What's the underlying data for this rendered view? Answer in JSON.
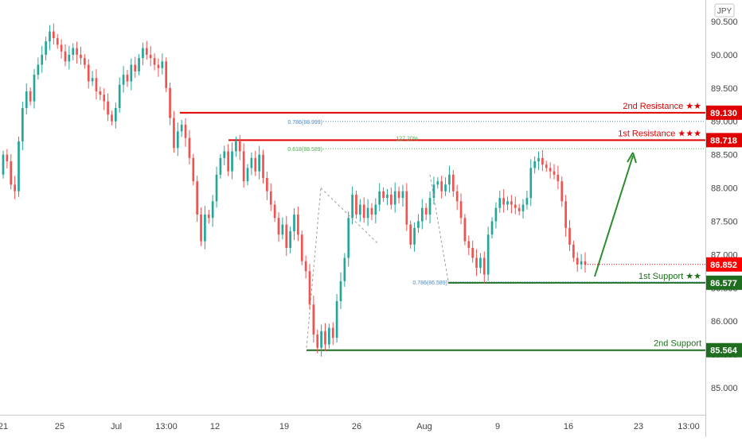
{
  "chart_data": {
    "type": "candlestick",
    "currency_label": "JPY",
    "colors": {
      "up": "#26a69a",
      "down": "#ef5350",
      "resistance": "#e00000",
      "support": "#1f6e1f",
      "fib_blue": "#4a8cc9",
      "fib_green": "#4caf50",
      "arrow": "#2e8b2e",
      "current_price": "#ff0000"
    },
    "y_axis": {
      "min": 84.5,
      "max": 90.8,
      "ticks": [
        "85.000",
        "85.500",
        "86.000",
        "86.500",
        "87.000",
        "87.500",
        "88.000",
        "88.500",
        "89.000",
        "89.500",
        "90.000",
        "90.500"
      ]
    },
    "x_axis": {
      "ticks": [
        "21",
        "25",
        "Jul",
        "13:00",
        "12",
        "19",
        "26",
        "Aug",
        "9",
        "16",
        "23",
        "13:00"
      ]
    },
    "levels": [
      {
        "label": "2nd Resistance ★★",
        "price": 89.13,
        "price_text": "89.130",
        "kind": "resistance"
      },
      {
        "label": "1st Resistance ★★★",
        "price": 88.718,
        "price_text": "88.718",
        "kind": "resistance"
      },
      {
        "label": "1st Support ★★",
        "price": 86.577,
        "price_text": "86.577",
        "kind": "support"
      },
      {
        "label": "2nd Support",
        "price": 85.564,
        "price_text": "85.564",
        "kind": "support"
      }
    ],
    "fib_labels": [
      {
        "text": "0.786(88.999)",
        "price": 88.999,
        "color": "blue"
      },
      {
        "text": "127.20%",
        "price": 88.75,
        "color": "green"
      },
      {
        "text": "0.618(88.589)",
        "price": 88.589,
        "color": "green"
      },
      {
        "text": "0.786(86.589)",
        "price": 86.589,
        "color": "blue"
      }
    ],
    "current_price": {
      "price": 86.852,
      "text": "86.852"
    },
    "series": [
      {
        "o": 88.2,
        "c": 88.5
      },
      {
        "o": 88.5,
        "c": 88.4
      },
      {
        "o": 88.4,
        "c": 88.05
      },
      {
        "o": 88.05,
        "c": 87.95
      },
      {
        "o": 87.95,
        "c": 88.7
      },
      {
        "o": 88.7,
        "c": 89.2
      },
      {
        "o": 89.2,
        "c": 89.45
      },
      {
        "o": 89.45,
        "c": 89.3
      },
      {
        "o": 89.3,
        "c": 89.7
      },
      {
        "o": 89.7,
        "c": 89.85
      },
      {
        "o": 89.85,
        "c": 90.0
      },
      {
        "o": 90.0,
        "c": 90.2
      },
      {
        "o": 90.2,
        "c": 90.35
      },
      {
        "o": 90.35,
        "c": 90.25
      },
      {
        "o": 90.25,
        "c": 90.15
      },
      {
        "o": 90.15,
        "c": 90.05
      },
      {
        "o": 90.05,
        "c": 89.9
      },
      {
        "o": 89.9,
        "c": 90.0
      },
      {
        "o": 90.0,
        "c": 90.1
      },
      {
        "o": 90.1,
        "c": 90.0
      },
      {
        "o": 90.0,
        "c": 89.95
      },
      {
        "o": 89.95,
        "c": 89.85
      },
      {
        "o": 89.85,
        "c": 89.6
      },
      {
        "o": 89.6,
        "c": 89.65
      },
      {
        "o": 89.65,
        "c": 89.45
      },
      {
        "o": 89.45,
        "c": 89.4
      },
      {
        "o": 89.4,
        "c": 89.3
      },
      {
        "o": 89.3,
        "c": 89.1
      },
      {
        "o": 89.1,
        "c": 89.0
      },
      {
        "o": 89.0,
        "c": 89.2
      },
      {
        "o": 89.2,
        "c": 89.55
      },
      {
        "o": 89.55,
        "c": 89.7
      },
      {
        "o": 89.7,
        "c": 89.6
      },
      {
        "o": 89.6,
        "c": 89.85
      },
      {
        "o": 89.85,
        "c": 89.75
      },
      {
        "o": 89.75,
        "c": 89.95
      },
      {
        "o": 89.95,
        "c": 90.1
      },
      {
        "o": 90.1,
        "c": 90.0
      },
      {
        "o": 90.0,
        "c": 89.95
      },
      {
        "o": 89.95,
        "c": 89.85
      },
      {
        "o": 89.85,
        "c": 89.8
      },
      {
        "o": 89.8,
        "c": 89.9
      },
      {
        "o": 89.9,
        "c": 89.5
      },
      {
        "o": 89.5,
        "c": 89.05
      },
      {
        "o": 89.05,
        "c": 88.6
      },
      {
        "o": 88.6,
        "c": 88.85
      },
      {
        "o": 88.85,
        "c": 88.95
      },
      {
        "o": 88.95,
        "c": 88.75
      },
      {
        "o": 88.75,
        "c": 88.45
      },
      {
        "o": 88.45,
        "c": 88.1
      },
      {
        "o": 88.1,
        "c": 87.6
      },
      {
        "o": 87.6,
        "c": 87.2
      },
      {
        "o": 87.2,
        "c": 87.6
      },
      {
        "o": 87.6,
        "c": 87.55
      },
      {
        "o": 87.55,
        "c": 87.8
      },
      {
        "o": 87.8,
        "c": 88.2
      },
      {
        "o": 88.2,
        "c": 88.45
      },
      {
        "o": 88.45,
        "c": 88.55
      },
      {
        "o": 88.55,
        "c": 88.25
      },
      {
        "o": 88.25,
        "c": 88.55
      },
      {
        "o": 88.55,
        "c": 88.7
      },
      {
        "o": 88.7,
        "c": 88.55
      },
      {
        "o": 88.55,
        "c": 88.1
      },
      {
        "o": 88.1,
        "c": 88.3
      },
      {
        "o": 88.3,
        "c": 88.45
      },
      {
        "o": 88.45,
        "c": 88.25
      },
      {
        "o": 88.25,
        "c": 88.5
      },
      {
        "o": 88.5,
        "c": 88.15
      },
      {
        "o": 88.15,
        "c": 87.95
      },
      {
        "o": 87.95,
        "c": 87.75
      },
      {
        "o": 87.75,
        "c": 87.55
      },
      {
        "o": 87.55,
        "c": 87.3
      },
      {
        "o": 87.3,
        "c": 87.45
      },
      {
        "o": 87.45,
        "c": 87.1
      },
      {
        "o": 87.1,
        "c": 87.35
      },
      {
        "o": 87.35,
        "c": 87.6
      },
      {
        "o": 87.6,
        "c": 87.3
      },
      {
        "o": 87.3,
        "c": 86.9
      },
      {
        "o": 86.9,
        "c": 86.75
      },
      {
        "o": 86.75,
        "c": 86.25
      },
      {
        "o": 86.25,
        "c": 85.8
      },
      {
        "o": 85.8,
        "c": 85.6
      },
      {
        "o": 85.6,
        "c": 85.85
      },
      {
        "o": 85.85,
        "c": 85.65
      },
      {
        "o": 85.65,
        "c": 85.9
      },
      {
        "o": 85.9,
        "c": 85.75
      },
      {
        "o": 85.75,
        "c": 86.3
      },
      {
        "o": 86.3,
        "c": 86.6
      },
      {
        "o": 86.6,
        "c": 86.95
      },
      {
        "o": 86.95,
        "c": 87.55
      },
      {
        "o": 87.55,
        "c": 87.9
      },
      {
        "o": 87.9,
        "c": 87.6
      },
      {
        "o": 87.6,
        "c": 87.75
      },
      {
        "o": 87.75,
        "c": 87.55
      },
      {
        "o": 87.55,
        "c": 87.7
      },
      {
        "o": 87.7,
        "c": 87.6
      },
      {
        "o": 87.6,
        "c": 87.75
      },
      {
        "o": 87.75,
        "c": 87.95
      },
      {
        "o": 87.95,
        "c": 87.85
      },
      {
        "o": 87.85,
        "c": 87.9
      },
      {
        "o": 87.9,
        "c": 87.75
      },
      {
        "o": 87.75,
        "c": 87.95
      },
      {
        "o": 87.95,
        "c": 87.85
      },
      {
        "o": 87.85,
        "c": 87.95
      },
      {
        "o": 87.95,
        "c": 87.45
      },
      {
        "o": 87.45,
        "c": 87.15
      },
      {
        "o": 87.15,
        "c": 87.4
      },
      {
        "o": 87.4,
        "c": 87.5
      },
      {
        "o": 87.5,
        "c": 87.7
      },
      {
        "o": 87.7,
        "c": 87.6
      },
      {
        "o": 87.6,
        "c": 87.85
      },
      {
        "o": 87.85,
        "c": 88.05
      },
      {
        "o": 88.05,
        "c": 88.1
      },
      {
        "o": 88.1,
        "c": 87.95
      },
      {
        "o": 87.95,
        "c": 88.05
      },
      {
        "o": 88.05,
        "c": 88.2
      },
      {
        "o": 88.2,
        "c": 87.95
      },
      {
        "o": 87.95,
        "c": 87.8
      },
      {
        "o": 87.8,
        "c": 87.55
      },
      {
        "o": 87.55,
        "c": 87.2
      },
      {
        "o": 87.2,
        "c": 87.1
      },
      {
        "o": 87.1,
        "c": 86.95
      },
      {
        "o": 86.95,
        "c": 86.8
      },
      {
        "o": 86.8,
        "c": 86.95
      },
      {
        "o": 86.95,
        "c": 86.7
      },
      {
        "o": 86.7,
        "c": 87.3
      },
      {
        "o": 87.3,
        "c": 87.5
      },
      {
        "o": 87.5,
        "c": 87.7
      },
      {
        "o": 87.7,
        "c": 87.85
      },
      {
        "o": 87.85,
        "c": 87.75
      },
      {
        "o": 87.75,
        "c": 87.8
      },
      {
        "o": 87.8,
        "c": 87.75
      },
      {
        "o": 87.75,
        "c": 87.7
      },
      {
        "o": 87.7,
        "c": 87.65
      },
      {
        "o": 87.65,
        "c": 87.75
      },
      {
        "o": 87.75,
        "c": 87.85
      },
      {
        "o": 87.85,
        "c": 88.3
      },
      {
        "o": 88.3,
        "c": 88.4
      },
      {
        "o": 88.4,
        "c": 88.45
      },
      {
        "o": 88.45,
        "c": 88.35
      },
      {
        "o": 88.35,
        "c": 88.3
      },
      {
        "o": 88.3,
        "c": 88.25
      },
      {
        "o": 88.25,
        "c": 88.2
      },
      {
        "o": 88.2,
        "c": 88.1
      },
      {
        "o": 88.1,
        "c": 87.8
      },
      {
        "o": 87.8,
        "c": 87.4
      },
      {
        "o": 87.4,
        "c": 87.15
      },
      {
        "o": 87.15,
        "c": 86.95
      },
      {
        "o": 86.95,
        "c": 86.85
      },
      {
        "o": 86.85,
        "c": 86.9
      },
      {
        "o": 86.9,
        "c": 86.85
      }
    ]
  }
}
